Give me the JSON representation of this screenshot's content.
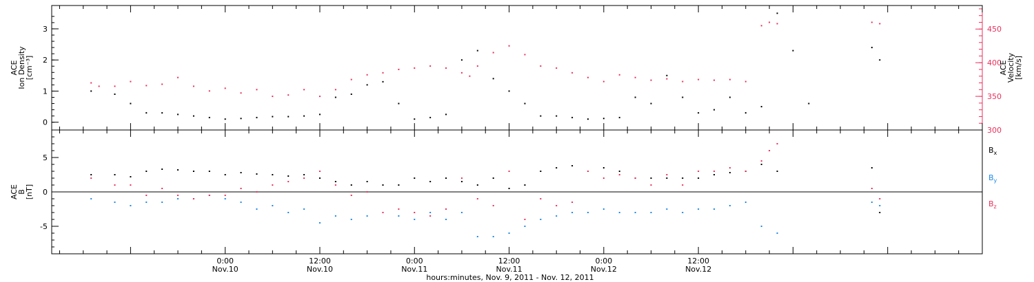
{
  "chart_data": [
    {
      "type": "scatter",
      "panel": "top",
      "ylabel_left": [
        "ACE",
        "Ion Density",
        "[cm⁻³]"
      ],
      "ylabel_right": [
        "ACE",
        "Velocity",
        "[km/s]"
      ],
      "left_ylim": [
        -0.25,
        3.75
      ],
      "left_yticks": [
        "0",
        "1",
        "2",
        "3"
      ],
      "right_ylim": [
        300,
        485
      ],
      "right_yticks": [
        "300",
        "350",
        "400",
        "450"
      ],
      "series": [
        {
          "axis": "left",
          "color": "#000000",
          "points": [
            [
              -17,
              1.0
            ],
            [
              -14,
              0.9
            ],
            [
              -12,
              0.6
            ],
            [
              -10,
              0.3
            ],
            [
              -8,
              0.3
            ],
            [
              -6,
              0.25
            ],
            [
              -4,
              0.2
            ],
            [
              -2,
              0.15
            ],
            [
              0,
              0.1
            ],
            [
              2,
              0.12
            ],
            [
              4,
              0.15
            ],
            [
              6,
              0.18
            ],
            [
              8,
              0.18
            ],
            [
              10,
              0.2
            ],
            [
              12,
              0.25
            ],
            [
              14,
              0.8
            ],
            [
              16,
              0.9
            ],
            [
              18,
              1.2
            ],
            [
              20,
              1.3
            ],
            [
              22,
              0.6
            ],
            [
              24,
              0.1
            ],
            [
              26,
              0.15
            ],
            [
              28,
              0.25
            ],
            [
              30,
              2.0
            ],
            [
              32,
              2.3
            ],
            [
              34,
              1.4
            ],
            [
              36,
              1.0
            ],
            [
              38,
              0.6
            ],
            [
              40,
              0.2
            ],
            [
              42,
              0.2
            ],
            [
              44,
              0.15
            ],
            [
              46,
              0.1
            ],
            [
              48,
              0.12
            ],
            [
              50,
              0.15
            ],
            [
              52,
              0.8
            ],
            [
              54,
              0.6
            ],
            [
              56,
              1.5
            ],
            [
              58,
              0.8
            ],
            [
              60,
              0.3
            ],
            [
              62,
              0.4
            ],
            [
              64,
              0.8
            ],
            [
              66,
              0.3
            ],
            [
              68,
              0.5
            ],
            [
              70,
              3.5
            ],
            [
              72,
              2.3
            ],
            [
              74,
              0.6
            ],
            [
              82,
              2.4
            ],
            [
              83,
              2.0
            ]
          ]
        },
        {
          "axis": "right",
          "color": "#e8305b",
          "points": [
            [
              -17,
              370
            ],
            [
              -16,
              365
            ],
            [
              -14,
              365
            ],
            [
              -12,
              372
            ],
            [
              -10,
              366
            ],
            [
              -8,
              368
            ],
            [
              -6,
              378
            ],
            [
              -4,
              365
            ],
            [
              -2,
              358
            ],
            [
              0,
              362
            ],
            [
              2,
              355
            ],
            [
              4,
              360
            ],
            [
              6,
              350
            ],
            [
              8,
              352
            ],
            [
              10,
              360
            ],
            [
              12,
              350
            ],
            [
              14,
              360
            ],
            [
              16,
              375
            ],
            [
              18,
              382
            ],
            [
              20,
              385
            ],
            [
              22,
              390
            ],
            [
              24,
              392
            ],
            [
              26,
              395
            ],
            [
              28,
              392
            ],
            [
              30,
              385
            ],
            [
              31,
              380
            ],
            [
              32,
              395
            ],
            [
              34,
              415
            ],
            [
              36,
              425
            ],
            [
              38,
              412
            ],
            [
              40,
              395
            ],
            [
              42,
              392
            ],
            [
              44,
              385
            ],
            [
              46,
              378
            ],
            [
              48,
              372
            ],
            [
              50,
              382
            ],
            [
              52,
              378
            ],
            [
              54,
              374
            ],
            [
              56,
              376
            ],
            [
              58,
              372
            ],
            [
              60,
              375
            ],
            [
              62,
              374
            ],
            [
              64,
              375
            ],
            [
              66,
              372
            ],
            [
              68,
              455
            ],
            [
              69,
              460
            ],
            [
              70,
              458
            ],
            [
              82,
              460
            ],
            [
              83,
              458
            ]
          ]
        }
      ]
    },
    {
      "type": "scatter",
      "panel": "bottom",
      "ylabel_left": [
        "ACE",
        "B",
        "[nT]"
      ],
      "ylim": [
        -9,
        9
      ],
      "yticks": [
        "-5",
        "0",
        "5"
      ],
      "legend": "right",
      "series": [
        {
          "name": "Bx",
          "color": "#000000",
          "points": [
            [
              -17,
              2.5
            ],
            [
              -14,
              2.5
            ],
            [
              -12,
              2.2
            ],
            [
              -10,
              3.0
            ],
            [
              -8,
              3.3
            ],
            [
              -6,
              3.2
            ],
            [
              -4,
              3.0
            ],
            [
              -2,
              3.0
            ],
            [
              0,
              2.5
            ],
            [
              2,
              2.8
            ],
            [
              4,
              2.6
            ],
            [
              6,
              2.5
            ],
            [
              8,
              2.3
            ],
            [
              10,
              2.5
            ],
            [
              12,
              2.0
            ],
            [
              14,
              1.5
            ],
            [
              16,
              1.0
            ],
            [
              18,
              1.5
            ],
            [
              20,
              1.0
            ],
            [
              22,
              1.0
            ],
            [
              24,
              2.0
            ],
            [
              26,
              1.5
            ],
            [
              28,
              2.0
            ],
            [
              30,
              1.5
            ],
            [
              32,
              1.0
            ],
            [
              34,
              2.0
            ],
            [
              36,
              0.5
            ],
            [
              38,
              1.0
            ],
            [
              40,
              3.0
            ],
            [
              42,
              3.5
            ],
            [
              44,
              3.8
            ],
            [
              46,
              3.0
            ],
            [
              48,
              3.5
            ],
            [
              50,
              3.0
            ],
            [
              52,
              2.0
            ],
            [
              54,
              2.0
            ],
            [
              56,
              2.0
            ],
            [
              58,
              2.0
            ],
            [
              60,
              2.0
            ],
            [
              62,
              2.5
            ],
            [
              64,
              2.8
            ],
            [
              66,
              3.0
            ],
            [
              68,
              4.0
            ],
            [
              70,
              3.0
            ],
            [
              82,
              3.5
            ],
            [
              83,
              -3.0
            ]
          ]
        },
        {
          "name": "By",
          "color": "#1e88e5",
          "points": [
            [
              -17,
              -1.0
            ],
            [
              -14,
              -1.5
            ],
            [
              -12,
              -2.0
            ],
            [
              -10,
              -1.5
            ],
            [
              -8,
              -1.5
            ],
            [
              -6,
              -1.0
            ],
            [
              -4,
              -1.0
            ],
            [
              -2,
              -0.5
            ],
            [
              0,
              -1.0
            ],
            [
              2,
              -1.5
            ],
            [
              4,
              -2.5
            ],
            [
              6,
              -2.0
            ],
            [
              8,
              -3.0
            ],
            [
              10,
              -2.5
            ],
            [
              12,
              -4.5
            ],
            [
              14,
              -3.5
            ],
            [
              16,
              -4.0
            ],
            [
              18,
              -3.5
            ],
            [
              20,
              -3.0
            ],
            [
              22,
              -3.5
            ],
            [
              24,
              -4.0
            ],
            [
              26,
              -3.0
            ],
            [
              28,
              -4.0
            ],
            [
              30,
              -3.0
            ],
            [
              32,
              -6.5
            ],
            [
              34,
              -6.5
            ],
            [
              36,
              -6.0
            ],
            [
              38,
              -5.0
            ],
            [
              40,
              -4.0
            ],
            [
              42,
              -3.5
            ],
            [
              44,
              -3.0
            ],
            [
              46,
              -3.0
            ],
            [
              48,
              -2.5
            ],
            [
              50,
              -3.0
            ],
            [
              52,
              -3.0
            ],
            [
              54,
              -3.0
            ],
            [
              56,
              -2.5
            ],
            [
              58,
              -3.0
            ],
            [
              60,
              -2.5
            ],
            [
              62,
              -2.5
            ],
            [
              64,
              -2.0
            ],
            [
              66,
              -1.5
            ],
            [
              68,
              -5.0
            ],
            [
              70,
              -6.0
            ],
            [
              82,
              -1.5
            ],
            [
              83,
              -2.0
            ]
          ]
        },
        {
          "name": "Bz",
          "color": "#e8305b",
          "points": [
            [
              -17,
              2.0
            ],
            [
              -14,
              1.0
            ],
            [
              -12,
              1.0
            ],
            [
              -10,
              -0.5
            ],
            [
              -8,
              0.5
            ],
            [
              -6,
              -0.5
            ],
            [
              -4,
              -1.0
            ],
            [
              -2,
              -0.5
            ],
            [
              0,
              -0.5
            ],
            [
              2,
              0.5
            ],
            [
              4,
              0.0
            ],
            [
              6,
              1.0
            ],
            [
              8,
              1.5
            ],
            [
              10,
              2.0
            ],
            [
              12,
              3.0
            ],
            [
              14,
              1.0
            ],
            [
              16,
              -0.5
            ],
            [
              18,
              0.0
            ],
            [
              20,
              -3.0
            ],
            [
              22,
              -2.5
            ],
            [
              24,
              -3.0
            ],
            [
              26,
              -3.5
            ],
            [
              28,
              -2.5
            ],
            [
              30,
              2.0
            ],
            [
              32,
              -1.0
            ],
            [
              34,
              -2.0
            ],
            [
              36,
              3.0
            ],
            [
              38,
              -4.0
            ],
            [
              40,
              -1.0
            ],
            [
              42,
              -2.0
            ],
            [
              44,
              -1.5
            ],
            [
              46,
              3.0
            ],
            [
              48,
              2.0
            ],
            [
              50,
              2.5
            ],
            [
              52,
              2.0
            ],
            [
              54,
              1.0
            ],
            [
              56,
              2.5
            ],
            [
              58,
              1.0
            ],
            [
              60,
              3.0
            ],
            [
              62,
              3.0
            ],
            [
              64,
              3.5
            ],
            [
              66,
              3.0
            ],
            [
              68,
              4.5
            ],
            [
              69,
              6.0
            ],
            [
              70,
              7.0
            ],
            [
              82,
              0.5
            ],
            [
              83,
              -1.0
            ]
          ]
        }
      ]
    }
  ],
  "x_axis": {
    "range_hours": [
      -22,
      96
    ],
    "ticks": [
      {
        "hour": 0,
        "time": "0:00",
        "date": "Nov.10"
      },
      {
        "hour": 12,
        "time": "12:00",
        "date": "Nov.10"
      },
      {
        "hour": 24,
        "time": "0:00",
        "date": "Nov.11"
      },
      {
        "hour": 36,
        "time": "12:00",
        "date": "Nov.11"
      },
      {
        "hour": 48,
        "time": "0:00",
        "date": "Nov.12"
      },
      {
        "hour": 60,
        "time": "12:00",
        "date": "Nov.12"
      }
    ],
    "label": "hours:minutes, Nov.  9, 2011 - Nov. 12, 2011"
  },
  "legend_labels": [
    {
      "base": "B",
      "sub": "x",
      "color": "#000000"
    },
    {
      "base": "B",
      "sub": "y",
      "color": "#1e88e5"
    },
    {
      "base": "B",
      "sub": "z",
      "color": "#e8305b"
    }
  ]
}
